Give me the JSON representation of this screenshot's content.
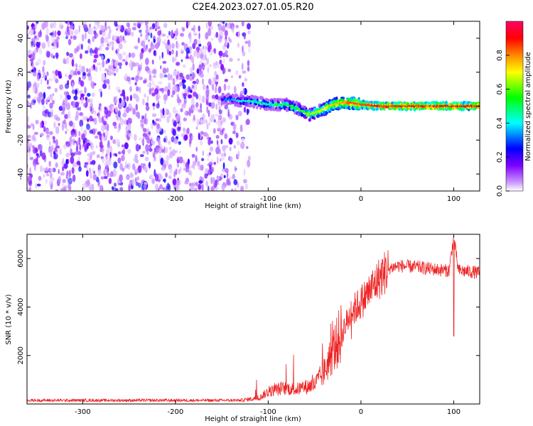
{
  "figure_title": "C2E4.2023.027.01.05.R20",
  "chart_data": [
    {
      "type": "heatmap",
      "title": "",
      "xlabel": "Height of straight line (km)",
      "ylabel": "Frequency (Hz)",
      "xlim": [
        -360,
        128
      ],
      "ylim": [
        -50,
        50
      ],
      "xticks": [
        -300,
        -200,
        -100,
        0,
        100
      ],
      "yticks": [
        -40,
        -20,
        0,
        20,
        40
      ],
      "noise_region_x": [
        -360,
        -120
      ],
      "noise_region_y": [
        -50,
        50
      ],
      "track": {
        "x": [
          -150,
          -140,
          -130,
          -120,
          -110,
          -100,
          -90,
          -80,
          -70,
          -60,
          -55,
          -50,
          -40,
          -30,
          -20,
          -10,
          0,
          20,
          40,
          60,
          80,
          100,
          120
        ],
        "y": [
          4,
          4,
          3,
          3,
          2,
          1,
          1,
          1,
          -1,
          -4,
          -5,
          -4,
          -2,
          1,
          2,
          2,
          1,
          0,
          0,
          0,
          0,
          0,
          0
        ],
        "amplitude": [
          0.25,
          0.35,
          0.4,
          0.45,
          0.45,
          0.45,
          0.5,
          0.55,
          0.55,
          0.6,
          0.65,
          0.65,
          0.7,
          0.75,
          0.8,
          0.85,
          0.85,
          0.9,
          0.9,
          0.9,
          0.9,
          0.9,
          0.9
        ]
      },
      "colorbar": {
        "label": "Normalized spectral amplitude",
        "range": [
          0,
          1
        ],
        "ticks": [
          0.0,
          0.2,
          0.4,
          0.6,
          0.8
        ],
        "colors": [
          "#ffffff",
          "#cc99ff",
          "#7f00ff",
          "#0000ff",
          "#00ffff",
          "#00ff00",
          "#ffff00",
          "#ff8800",
          "#ff0000",
          "#ff0066"
        ]
      }
    },
    {
      "type": "line",
      "title": "",
      "xlabel": "Height of straight line (km)",
      "ylabel": "SNR (10 * v/v)",
      "xlim": [
        -360,
        128
      ],
      "ylim": [
        0,
        7000
      ],
      "xticks": [
        -300,
        -200,
        -100,
        0,
        100
      ],
      "yticks": [
        2000,
        4000,
        6000
      ],
      "series": [
        {
          "color": "#ee2222",
          "x": [
            -360,
            -300,
            -200,
            -130,
            -110,
            -100,
            -90,
            -80,
            -70,
            -60,
            -50,
            -40,
            -30,
            -20,
            -10,
            0,
            10,
            20,
            30,
            40,
            60,
            80,
            95,
            100,
            105,
            120,
            128
          ],
          "y": [
            150,
            150,
            150,
            150,
            250,
            500,
            600,
            650,
            600,
            700,
            800,
            1300,
            2200,
            3000,
            3800,
            4200,
            4700,
            5200,
            5600,
            5700,
            5650,
            5550,
            5500,
            6900,
            5500,
            5450,
            5400
          ]
        }
      ]
    }
  ]
}
